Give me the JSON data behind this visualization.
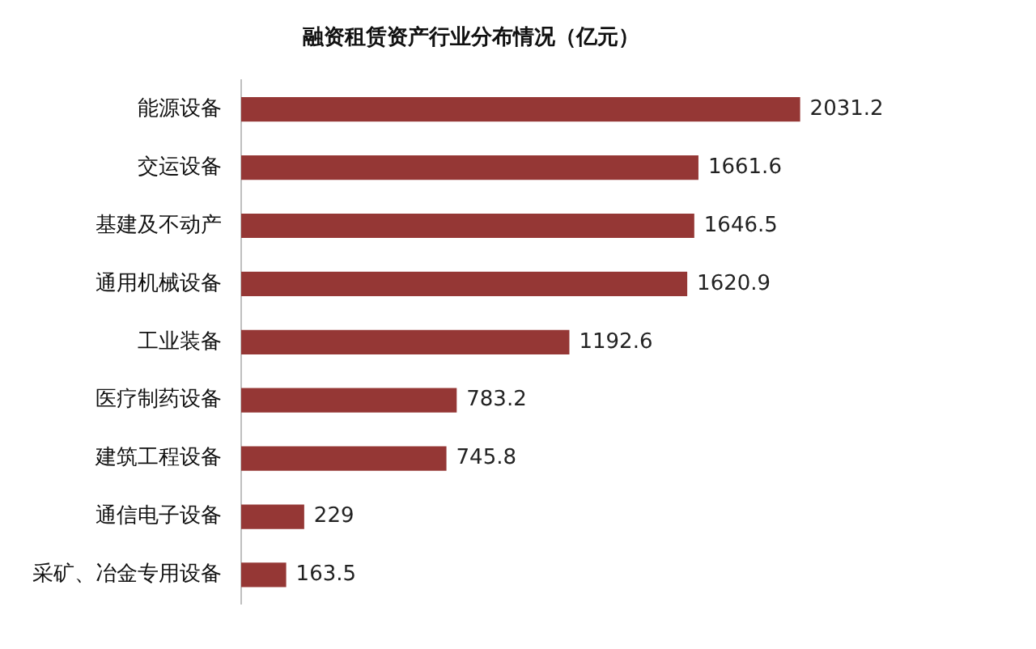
{
  "chart_data": {
    "type": "bar",
    "orientation": "horizontal",
    "title": "融资租赁资产行业分布情况（亿元）",
    "categories": [
      "能源设备",
      "交运设备",
      "基建及不动产",
      "通用机械设备",
      "工业装备",
      "医疗制药设备",
      "建筑工程设备",
      "通信电子设备",
      "采矿、冶金专用设备"
    ],
    "values": [
      2031.2,
      1661.6,
      1646.5,
      1620.9,
      1192.6,
      783.2,
      745.8,
      229,
      163.5
    ],
    "color": "#953735",
    "data_labels": true
  }
}
